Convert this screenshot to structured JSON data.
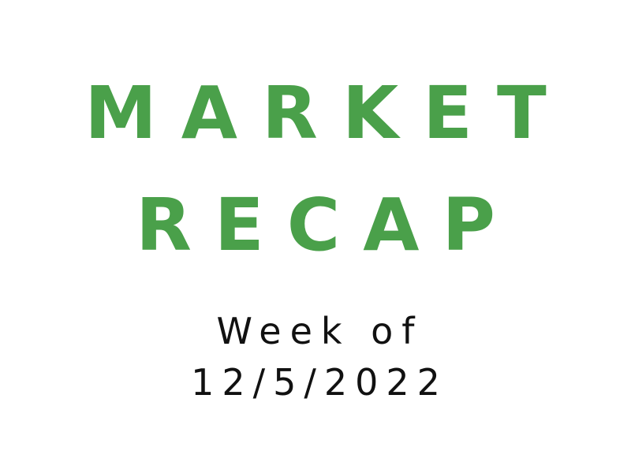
{
  "colors": {
    "background": "#ffffff",
    "title": "#4aa04a",
    "subtitle": "#111111"
  },
  "title": {
    "line1": "MARKET",
    "line2": "RECAP"
  },
  "subtitle": {
    "line1": "Week of",
    "line2": "12/5/2022"
  }
}
